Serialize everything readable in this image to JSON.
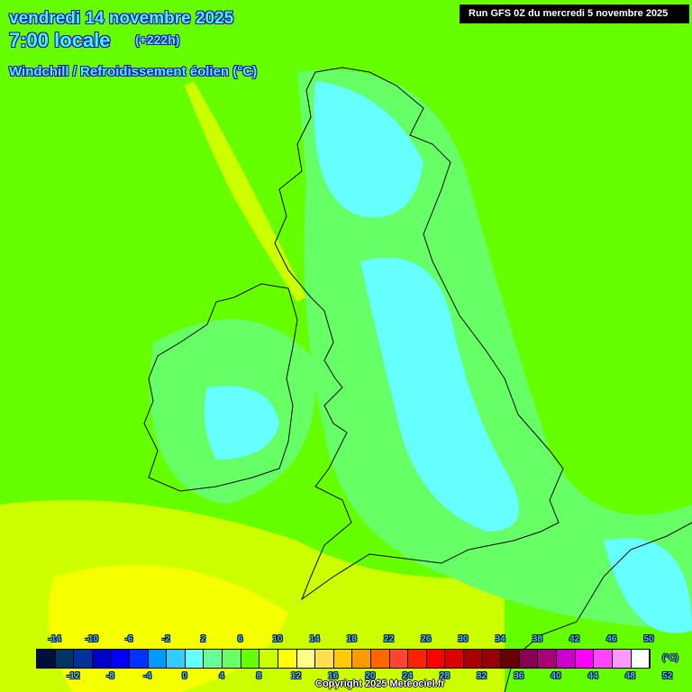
{
  "header": {
    "date": "vendredi 14 novembre 2025",
    "time": "7:00 locale",
    "lead": "(+222h)",
    "parameter": "Windchill / Refroidissement éolien (°C)",
    "run": "Run GFS 0Z du mercredi 5 novembre 2025"
  },
  "legend": {
    "unit": "(°C)",
    "top_labels": [
      "-14",
      "-10",
      "-6",
      "-2",
      "2",
      "6",
      "10",
      "14",
      "18",
      "22",
      "26",
      "30",
      "34",
      "38",
      "42",
      "46",
      "50"
    ],
    "bottom_labels": [
      "-12",
      "-8",
      "-4",
      "0",
      "4",
      "8",
      "12",
      "16",
      "20",
      "24",
      "28",
      "32",
      "36",
      "40",
      "44",
      "48",
      "52"
    ],
    "colors": [
      "#00103a",
      "#003366",
      "#003399",
      "#0000cc",
      "#0000ff",
      "#0033ff",
      "#0099ff",
      "#33ccff",
      "#66ffff",
      "#66ff99",
      "#66ff66",
      "#66ff00",
      "#ccff00",
      "#ffff00",
      "#ffff88",
      "#ffdd55",
      "#ffcc00",
      "#ff9900",
      "#ff6600",
      "#ff4433",
      "#ff2200",
      "#ff0000",
      "#dd0000",
      "#aa0000",
      "#990000",
      "#660000",
      "#880055",
      "#aa0077",
      "#cc00cc",
      "#ff00ff",
      "#ff44ff",
      "#ff99ff",
      "#ffffff"
    ]
  },
  "map_colors": {
    "base": "#66ff00",
    "mild": "#ccff00",
    "warm": "#ffff00",
    "cool": "#66ff66",
    "cold": "#66ffff",
    "colder": "#33ccff"
  },
  "copyright": "Copyright 2025 Meteociel.fr"
}
